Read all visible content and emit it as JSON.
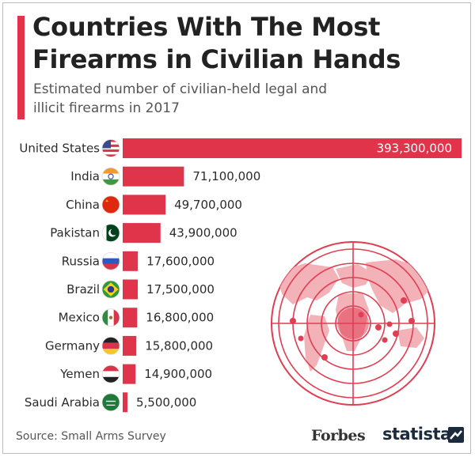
{
  "title": "Countries With The Most Firearms in Civilian Hands",
  "subtitle": "Estimated number of civilian-held legal and illicit firearms in 2017",
  "source": "Source: Small Arms Survey",
  "brands": {
    "forbes": "Forbes",
    "statista": "statista"
  },
  "colors": {
    "accent": "#e0344a",
    "bar": "#e0344a",
    "text": "#2b2b2b"
  },
  "chart_data": {
    "type": "bar",
    "orientation": "horizontal",
    "categories": [
      "United States",
      "India",
      "China",
      "Pakistan",
      "Russia",
      "Brazil",
      "Mexico",
      "Germany",
      "Yemen",
      "Saudi Arabia"
    ],
    "values": [
      393300000,
      71100000,
      49700000,
      43900000,
      17600000,
      17500000,
      16800000,
      15800000,
      14900000,
      5500000
    ],
    "value_labels": [
      "393,300,000",
      "71,100,000",
      "49,700,000",
      "43,900,000",
      "17,600,000",
      "17,500,000",
      "16,800,000",
      "15,800,000",
      "14,900,000",
      "5,500,000"
    ],
    "flags": [
      "us-flag-icon",
      "india-flag-icon",
      "china-flag-icon",
      "pakistan-flag-icon",
      "russia-flag-icon",
      "brazil-flag-icon",
      "mexico-flag-icon",
      "germany-flag-icon",
      "yemen-flag-icon",
      "saudi-arabia-flag-icon"
    ],
    "xlim": [
      0,
      393300000
    ],
    "grid": false,
    "legend": "none"
  }
}
